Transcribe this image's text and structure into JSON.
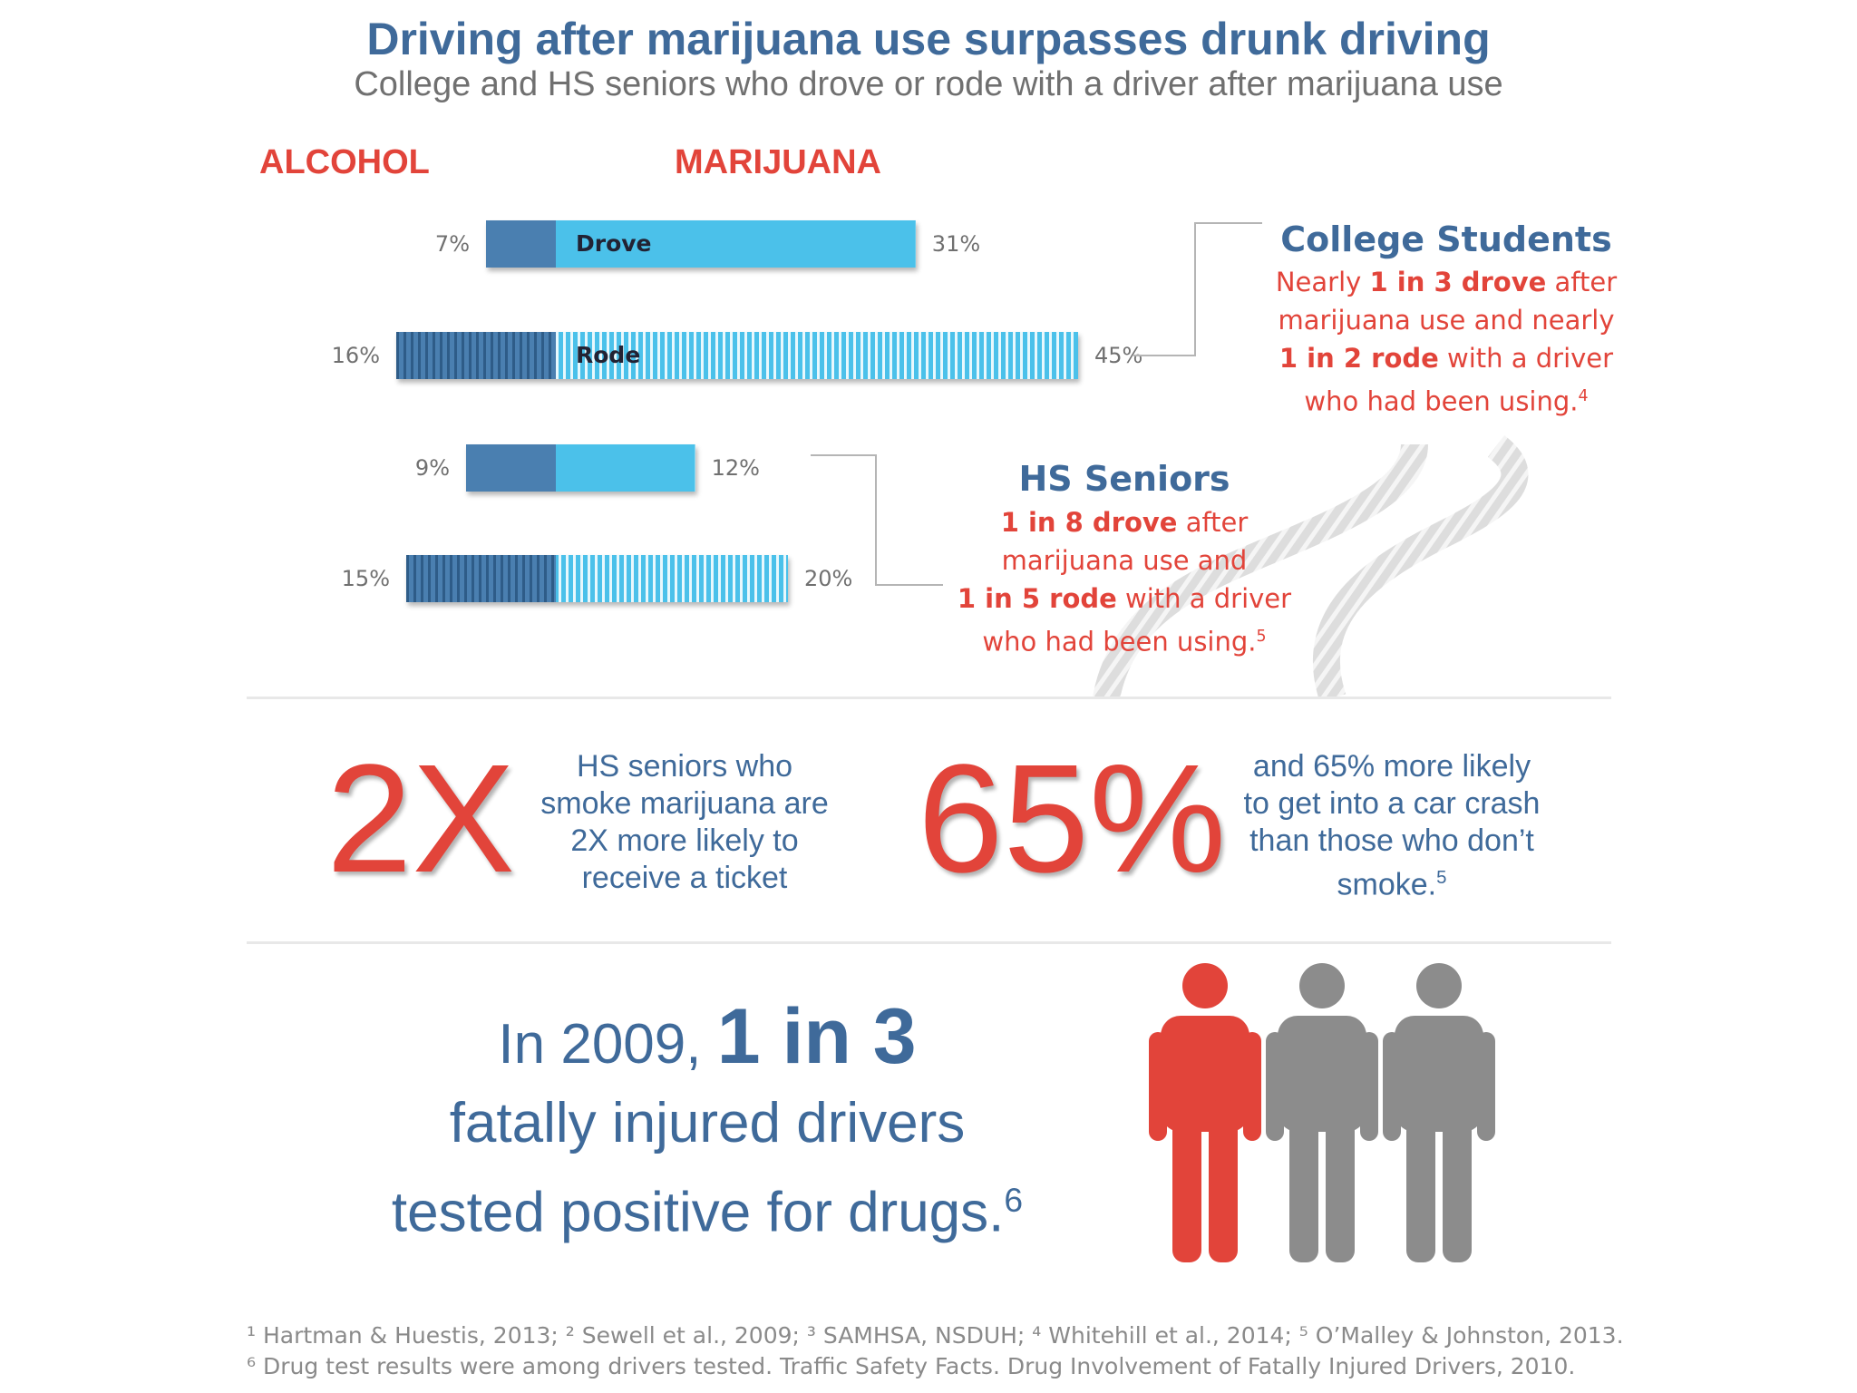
{
  "header": {
    "title": "Driving after marijuana use surpasses drunk driving",
    "subtitle": "College and HS seniors who drove or rode with a driver after marijuana use"
  },
  "chart_data": {
    "type": "bar",
    "legend": [
      "ALCOHOL",
      "MARIJUANA"
    ],
    "rows": [
      {
        "label": "Drove",
        "group": "College Students",
        "alcohol": 7,
        "marijuana": 31,
        "alcohol_text": "7%",
        "marijuana_text": "31%",
        "style": "solid"
      },
      {
        "label": "Rode",
        "group": "College Students",
        "alcohol": 16,
        "marijuana": 45,
        "alcohol_text": "16%",
        "marijuana_text": "45%",
        "style": "striped"
      },
      {
        "label": "",
        "group": "HS Seniors",
        "alcohol": 9,
        "marijuana": 12,
        "alcohol_text": "9%",
        "marijuana_text": "12%",
        "style": "solid"
      },
      {
        "label": "",
        "group": "HS Seniors",
        "alcohol": 15,
        "marijuana": 20,
        "alcohol_text": "15%",
        "marijuana_text": "20%",
        "style": "striped"
      }
    ],
    "colors": {
      "alcohol": "#4a7fb0",
      "marijuana": "#4bc1ea"
    }
  },
  "callouts": {
    "college": {
      "heading": "College Students",
      "l1a": "Nearly ",
      "l1b": "1 in 3 drove",
      "l1c": " after",
      "l2": "marijuana use and nearly",
      "l3b": "1 in 2 rode",
      "l3c": " with a driver",
      "l4": "who had been using.",
      "l4sup": "4"
    },
    "hs": {
      "heading": "HS Seniors",
      "l1b": "1 in 8 drove",
      "l1c": " after",
      "l2": "marijuana use and",
      "l3b": "1 in 5 rode",
      "l3c": " with a driver",
      "l4": "who had been using.",
      "l4sup": "5"
    }
  },
  "stats": {
    "ticket_big": "2X",
    "ticket_lines": [
      "HS seniors who",
      "smoke marijuana are",
      "2X more likely to",
      "receive a ticket"
    ],
    "crash_big": "65%",
    "crash_lines": [
      "and 65% more likely",
      "to get into a car crash",
      "than those who don’t",
      "smoke."
    ],
    "crash_sup": "5"
  },
  "bottom": {
    "l1a": "In 2009, ",
    "l1b": "1 in 3",
    "l2": "fatally injured drivers",
    "l3": "tested positive for drugs.",
    "l3sup": "6",
    "figure_colors": [
      "#e2443a",
      "#8c8c8c",
      "#8c8c8c"
    ]
  },
  "footnotes": {
    "line1": "¹ Hartman & Huestis, 2013; ² Sewell et al., 2009; ³ SAMHSA, NSDUH; ⁴ Whitehill et al., 2014; ⁵ O’Malley & Johnston, 2013.",
    "line2": "⁶ Drug test results were among drivers tested. Traffic Safety Facts. Drug Involvement of Fatally Injured Drivers, 2010."
  }
}
